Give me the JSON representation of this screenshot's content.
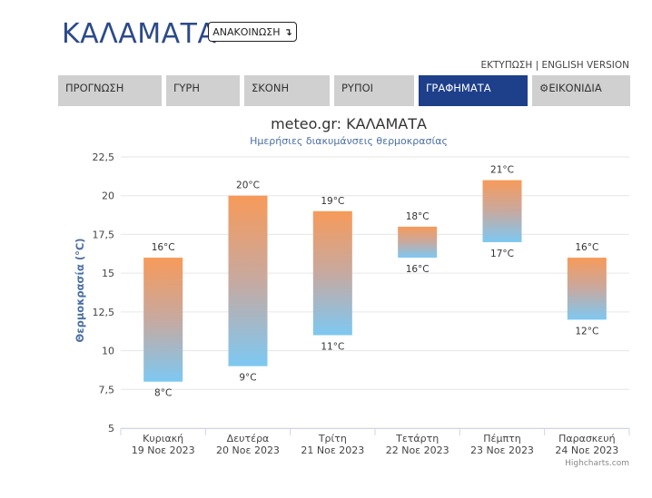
{
  "header": {
    "city": "ΚΑΛΑΜΑΤΑ",
    "announce_label": "ΑΝΑΚΟΙΝΩΣΗ",
    "print_label": "ΕΚΤΥΠΩΣΗ",
    "separator": "|",
    "english_label": "ENGLISH VERSION"
  },
  "tabs": [
    {
      "label": "ΠΡΟΓΝΩΣΗ",
      "active": false
    },
    {
      "label": "ΓΥΡΗ",
      "active": false
    },
    {
      "label": "ΣΚΟΝΗ",
      "active": false
    },
    {
      "label": "ΡΥΠΟΙ",
      "active": false
    },
    {
      "label": "ΓΡΑΦΗΜΑΤΑ",
      "active": true
    },
    {
      "label": "ΕΙΚΟΝΙΔΙΑ",
      "active": false
    }
  ],
  "colors": {
    "accent": "#1e3f8a",
    "bar_top": "#f79a5a",
    "bar_bottom": "#7dc8f2"
  },
  "chart_data": {
    "type": "bar",
    "title": "meteo.gr: ΚΑΛΑΜΑΤΑ",
    "subtitle": "Ημερήσιες διακυμάνσεις θερμοκρασίας",
    "ylabel": "Θερμοκρασία (°C)",
    "ylim": [
      5,
      22.5
    ],
    "yticks": [
      "5",
      "7,5",
      "10",
      "12,5",
      "15",
      "17,5",
      "20",
      "22,5"
    ],
    "ytick_values": [
      5,
      7.5,
      10,
      12.5,
      15,
      17.5,
      20,
      22.5
    ],
    "grid": true,
    "categories": [
      {
        "day": "Κυριακή",
        "date": "19 Νοε 2023"
      },
      {
        "day": "Δευτέρα",
        "date": "20 Νοε 2023"
      },
      {
        "day": "Τρίτη",
        "date": "21 Νοε 2023"
      },
      {
        "day": "Τετάρτη",
        "date": "22 Νοε 2023"
      },
      {
        "day": "Πέμπτη",
        "date": "23 Νοε 2023"
      },
      {
        "day": "Παρασκευή",
        "date": "24 Νοε 2023"
      }
    ],
    "low": [
      8,
      9,
      11,
      16,
      17,
      12
    ],
    "high": [
      16,
      20,
      19,
      18,
      21,
      16
    ],
    "low_labels": [
      "8°C",
      "9°C",
      "11°C",
      "16°C",
      "17°C",
      "12°C"
    ],
    "high_labels": [
      "16°C",
      "20°C",
      "19°C",
      "18°C",
      "21°C",
      "16°C"
    ],
    "credits": "Highcharts.com"
  }
}
